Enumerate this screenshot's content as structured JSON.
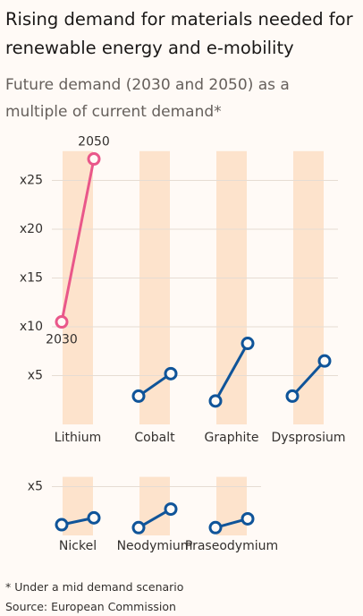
{
  "title": "Rising demand for materials needed for renewable energy and e-mobility",
  "subtitle": "Future demand (2030 and 2050) as a multiple of current demand*",
  "note": "* Under a mid demand scenario",
  "source": "Source: European Commission",
  "chart_data": [
    {
      "type": "slope",
      "categories": [
        "Lithium",
        "Cobalt",
        "Graphite",
        "Dysprosium"
      ],
      "series": [
        {
          "name": "2030",
          "values": [
            10.5,
            2.9,
            2.4,
            2.9
          ]
        },
        {
          "name": "2050",
          "values": [
            27.2,
            5.2,
            8.3,
            6.5
          ]
        }
      ],
      "colors": [
        "#e9578a",
        "#0f5499",
        "#0f5499",
        "#0f5499"
      ],
      "ylim": [
        0,
        28
      ],
      "yticks": [
        {
          "value": 5,
          "label": "x5"
        },
        {
          "value": 10,
          "label": "x10"
        },
        {
          "value": 15,
          "label": "x15"
        },
        {
          "value": 20,
          "label": "x20"
        },
        {
          "value": 25,
          "label": "x25"
        }
      ],
      "grid": true
    },
    {
      "type": "slope",
      "categories": [
        "Nickel",
        "Neodymium",
        "Praseodymium"
      ],
      "series": [
        {
          "values": [
            1.1,
            0.8,
            0.8
          ]
        },
        {
          "values": [
            1.8,
            2.7,
            1.7
          ]
        }
      ],
      "colors": [
        "#0f5499",
        "#0f5499",
        "#0f5499"
      ],
      "ylim": [
        0,
        6
      ],
      "yticks": [
        {
          "value": 5,
          "label": "x5"
        }
      ],
      "grid": true
    }
  ]
}
